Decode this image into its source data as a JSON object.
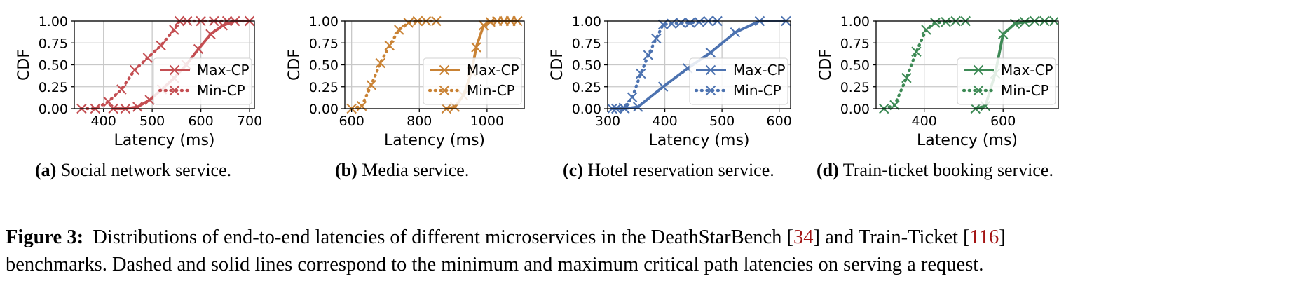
{
  "colors": {
    "red": "#c44e52",
    "orange": "#c98234",
    "blue": "#4c72b0",
    "green": "#3d8a55",
    "grid": "#c8c8c8",
    "ref": "#a31515"
  },
  "chart_data": [
    {
      "type": "line",
      "xlabel": "Latency (ms)",
      "ylabel": "CDF",
      "xlim": [
        340,
        710
      ],
      "ylim": [
        0,
        1
      ],
      "xticks": [
        "400",
        "500",
        "600",
        "700"
      ],
      "yticks": [
        "0.00",
        "0.25",
        "0.50",
        "0.75",
        "1.00"
      ],
      "grid": true,
      "legend_position": "center-right",
      "color": "red",
      "series": [
        {
          "name": "Max-CP",
          "style": "solid",
          "x": [
            420,
            445,
            470,
            495,
            520,
            545,
            570,
            595,
            620,
            645,
            670,
            700
          ],
          "y": [
            0.0,
            0.0,
            0.02,
            0.1,
            0.22,
            0.35,
            0.5,
            0.68,
            0.85,
            0.95,
            1.0,
            1.0
          ]
        },
        {
          "name": "Min-CP",
          "style": "dotted",
          "x": [
            355,
            383,
            410,
            437,
            464,
            491,
            518,
            545,
            556,
            572,
            600,
            627,
            654,
            700
          ],
          "y": [
            0.0,
            0.0,
            0.08,
            0.22,
            0.44,
            0.58,
            0.72,
            0.9,
            1.0,
            1.0,
            1.0,
            1.0,
            1.0,
            1.0
          ]
        }
      ],
      "caption_label": "(a)",
      "caption_text": "Social network service."
    },
    {
      "type": "line",
      "xlabel": "Latency (ms)",
      "ylabel": "CDF",
      "xlim": [
        580,
        1110
      ],
      "ylim": [
        0,
        1
      ],
      "xticks": [
        "600",
        "800",
        "1000"
      ],
      "yticks": [
        "0.00",
        "0.25",
        "0.50",
        "0.75",
        "1.00"
      ],
      "grid": true,
      "legend_position": "center-right",
      "color": "orange",
      "series": [
        {
          "name": "Max-CP",
          "style": "solid",
          "x": [
            880,
            905,
            930,
            955,
            968,
            990,
            1010,
            1030,
            1050,
            1070,
            1090
          ],
          "y": [
            0.0,
            0.02,
            0.15,
            0.42,
            0.7,
            0.95,
            0.99,
            1.0,
            1.0,
            1.0,
            1.0
          ]
        },
        {
          "name": "Min-CP",
          "style": "dotted",
          "x": [
            600,
            630,
            658,
            685,
            712,
            740,
            768,
            795,
            820,
            850
          ],
          "y": [
            0.0,
            0.03,
            0.27,
            0.52,
            0.72,
            0.9,
            0.98,
            1.0,
            1.0,
            1.0
          ]
        }
      ],
      "caption_label": "(b)",
      "caption_text": "Media service."
    },
    {
      "type": "line",
      "xlabel": "Latency (ms)",
      "ylabel": "CDF",
      "xlim": [
        300,
        620
      ],
      "ylim": [
        0,
        1
      ],
      "xticks": [
        "300",
        "400",
        "500",
        "600"
      ],
      "yticks": [
        "0.00",
        "0.25",
        "0.50",
        "0.75",
        "1.00"
      ],
      "grid": true,
      "legend_position": "center-right",
      "color": "blue",
      "series": [
        {
          "name": "Max-CP",
          "style": "solid",
          "x": [
            308,
            330,
            353,
            397,
            440,
            480,
            523,
            566,
            612
          ],
          "y": [
            0.0,
            0.0,
            0.02,
            0.25,
            0.46,
            0.64,
            0.87,
            1.0,
            1.0
          ]
        },
        {
          "name": "Min-CP",
          "style": "dotted",
          "x": [
            315,
            328,
            343,
            358,
            371,
            385,
            397,
            412,
            428,
            444,
            460,
            476,
            492
          ],
          "y": [
            0.0,
            0.01,
            0.13,
            0.4,
            0.61,
            0.8,
            0.96,
            0.97,
            0.98,
            0.98,
            0.99,
            1.0,
            1.0
          ]
        }
      ],
      "caption_label": "(c)",
      "caption_text": "Hotel reservation service."
    },
    {
      "type": "line",
      "xlabel": "Latency (ms)",
      "ylabel": "CDF",
      "xlim": [
        278,
        740
      ],
      "ylim": [
        0,
        1
      ],
      "xticks": [
        "400",
        "600"
      ],
      "yticks": [
        "0.00",
        "0.25",
        "0.50",
        "0.75",
        "1.00"
      ],
      "grid": true,
      "legend_position": "center-right",
      "color": "green",
      "series": [
        {
          "name": "Max-CP",
          "style": "solid",
          "x": [
            530,
            555,
            580,
            600,
            630,
            655,
            680,
            705,
            730
          ],
          "y": [
            0.0,
            0.03,
            0.4,
            0.85,
            0.97,
            0.99,
            1.0,
            1.0,
            1.0
          ]
        },
        {
          "name": "Min-CP",
          "style": "dotted",
          "x": [
            298,
            325,
            355,
            380,
            405,
            428,
            455,
            480,
            505
          ],
          "y": [
            0.0,
            0.04,
            0.35,
            0.65,
            0.9,
            0.98,
            0.99,
            1.0,
            1.0
          ]
        }
      ],
      "caption_label": "(d)",
      "caption_text": "Train-ticket booking service."
    }
  ],
  "figure_caption": {
    "label": "Figure 3:",
    "line1_a": "Distributions of end-to-end latencies of different microservices in the DeathStarBench [",
    "ref1": "34",
    "line1_b": "] and Train-Ticket [",
    "ref2": "116",
    "line1_c": "]",
    "line2": "benchmarks. Dashed and solid lines correspond to the minimum and maximum critical path latencies on serving a request."
  }
}
